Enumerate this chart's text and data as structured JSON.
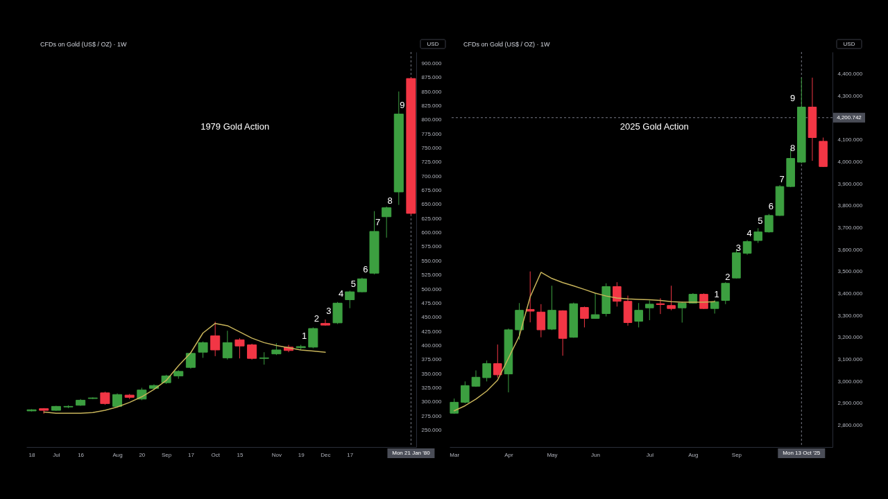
{
  "chart_data": [
    {
      "type": "candlestick",
      "title": "CFDs on Gold (US$ / OZ) · 1W",
      "ylabel": "USD",
      "x": [
        "1979-06-18",
        "1979-06-25",
        "1979-07-02",
        "1979-07-09",
        "1979-07-16",
        "1979-07-23",
        "1979-07-30",
        "1979-08-06",
        "1979-08-13",
        "1979-08-20",
        "1979-08-27",
        "1979-09-03",
        "1979-09-10",
        "1979-09-17",
        "1979-09-24",
        "1979-10-01",
        "1979-10-08",
        "1979-10-15",
        "1979-10-22",
        "1979-10-29",
        "1979-11-05",
        "1979-11-12",
        "1979-11-19",
        "1979-11-26",
        "1979-12-03",
        "1979-12-10",
        "1979-12-17",
        "1979-12-24",
        "1979-12-31",
        "1980-01-07",
        "1980-01-14",
        "1980-01-21"
      ],
      "ohlc": [
        [
          284,
          287,
          283,
          286
        ],
        [
          288,
          289,
          279,
          285
        ],
        [
          285,
          293,
          284,
          292
        ],
        [
          291,
          294,
          289,
          292
        ],
        [
          294,
          305,
          293,
          303
        ],
        [
          306,
          308,
          305,
          307
        ],
        [
          316,
          318,
          295,
          297
        ],
        [
          292,
          315,
          290,
          313
        ],
        [
          312,
          314,
          305,
          308
        ],
        [
          305,
          325,
          303,
          321
        ],
        [
          324,
          331,
          322,
          329
        ],
        [
          334,
          348,
          332,
          346
        ],
        [
          346,
          356,
          341,
          354
        ],
        [
          361,
          388,
          359,
          386
        ],
        [
          388,
          407,
          378,
          405
        ],
        [
          417,
          442,
          381,
          392
        ],
        [
          378,
          426,
          375,
          405
        ],
        [
          410,
          413,
          377,
          399
        ],
        [
          401,
          403,
          375,
          377
        ],
        [
          377,
          388,
          366,
          378
        ],
        [
          385,
          404,
          383,
          392
        ],
        [
          397,
          401,
          388,
          391
        ],
        [
          396,
          401,
          392,
          398
        ],
        [
          397,
          432,
          395,
          430
        ],
        [
          439,
          446,
          435,
          436
        ],
        [
          440,
          477,
          438,
          475
        ],
        [
          481,
          497,
          466,
          495
        ],
        [
          495,
          520,
          494,
          518
        ],
        [
          528,
          638,
          526,
          602
        ],
        [
          628,
          646,
          591,
          644
        ],
        [
          672,
          850,
          649,
          810
        ],
        [
          873,
          875,
          631,
          634
        ]
      ],
      "colors": [
        "#3c9f40",
        "#f23645",
        "#3c9f40",
        "#3c9f40",
        "#3c9f40",
        "#3c9f40",
        "#f23645",
        "#3c9f40",
        "#f23645",
        "#3c9f40",
        "#3c9f40",
        "#3c9f40",
        "#3c9f40",
        "#3c9f40",
        "#3c9f40",
        "#f23645",
        "#3c9f40",
        "#f23645",
        "#f23645",
        "#3c9f40",
        "#3c9f40",
        "#f23645",
        "#3c9f40",
        "#3c9f40",
        "#f23645",
        "#3c9f40",
        "#3c9f40",
        "#3c9f40",
        "#3c9f40",
        "#3c9f40",
        "#3c9f40",
        "#f23645"
      ],
      "xlim": [
        "1979-06-15",
        "1980-01-24"
      ],
      "xticks": [
        {
          "value": "1979-06-18",
          "label": "18"
        },
        {
          "value": "1979-07-02",
          "label": "Jul"
        },
        {
          "value": "1979-07-16",
          "label": "16"
        },
        {
          "value": "1979-08-06",
          "label": "Aug"
        },
        {
          "value": "1979-08-20",
          "label": "20"
        },
        {
          "value": "1979-09-03",
          "label": "Sep"
        },
        {
          "value": "1979-09-17",
          "label": "17"
        },
        {
          "value": "1979-10-01",
          "label": "Oct"
        },
        {
          "value": "1979-10-15",
          "label": "15"
        },
        {
          "value": "1979-11-05",
          "label": "Nov"
        },
        {
          "value": "1979-11-19",
          "label": "19"
        },
        {
          "value": "1979-12-03",
          "label": "Dec"
        },
        {
          "value": "1979-12-17",
          "label": "17"
        }
      ],
      "ylim": [
        220,
        920
      ],
      "yticks": [
        {
          "value": 250,
          "label": "250.000"
        },
        {
          "value": 275,
          "label": "275.000"
        },
        {
          "value": 300,
          "label": "300.000"
        },
        {
          "value": 325,
          "label": "325.000"
        },
        {
          "value": 350,
          "label": "350.000"
        },
        {
          "value": 375,
          "label": "375.000"
        },
        {
          "value": 400,
          "label": "400.000"
        },
        {
          "value": 425,
          "label": "425.000"
        },
        {
          "value": 450,
          "label": "450.000"
        },
        {
          "value": 475,
          "label": "475.000"
        },
        {
          "value": 500,
          "label": "500.000"
        },
        {
          "value": 525,
          "label": "525.000"
        },
        {
          "value": 550,
          "label": "550.000"
        },
        {
          "value": 575,
          "label": "575.000"
        },
        {
          "value": 600,
          "label": "600.000"
        },
        {
          "value": 625,
          "label": "625.000"
        },
        {
          "value": 650,
          "label": "650.000"
        },
        {
          "value": 675,
          "label": "675.000"
        },
        {
          "value": 700,
          "label": "700.000"
        },
        {
          "value": 725,
          "label": "725.000"
        },
        {
          "value": 750,
          "label": "750.000"
        },
        {
          "value": 775,
          "label": "775.000"
        },
        {
          "value": 800,
          "label": "800.000"
        },
        {
          "value": 825,
          "label": "825.000"
        },
        {
          "value": 850,
          "label": "850.000"
        },
        {
          "value": 875,
          "label": "875.000"
        },
        {
          "value": 900,
          "label": "900.000"
        }
      ],
      "series": [
        {
          "type": "line",
          "color": "#c8b45a",
          "x": [
            "1979-06-25",
            "1979-07-02",
            "1979-07-09",
            "1979-07-16",
            "1979-07-23",
            "1979-07-30",
            "1979-08-06",
            "1979-08-13",
            "1979-08-20",
            "1979-08-27",
            "1979-09-03",
            "1979-09-10",
            "1979-09-17",
            "1979-09-24",
            "1979-10-01",
            "1979-10-08",
            "1979-10-15",
            "1979-10-22",
            "1979-10-29",
            "1979-11-05",
            "1979-11-12",
            "1979-11-19",
            "1979-11-26",
            "1979-12-03"
          ],
          "values": [
            282,
            280,
            280,
            280,
            281,
            285,
            291,
            299,
            309,
            322,
            338,
            364,
            387,
            422,
            439,
            435,
            424,
            413,
            405,
            400,
            396,
            392,
            390,
            388
          ]
        }
      ],
      "annotations": [
        "1979 Gold Action",
        {
          "text": "1",
          "x": "1979-11-26",
          "y": 416
        },
        {
          "text": "2",
          "x": "1979-12-03",
          "y": 447
        },
        {
          "text": "3",
          "x": "1979-12-10",
          "y": 461
        },
        {
          "text": "4",
          "x": "1979-12-17",
          "y": 491
        },
        {
          "text": "5",
          "x": "1979-12-24",
          "y": 509
        },
        {
          "text": "6",
          "x": "1979-12-31",
          "y": 535
        },
        {
          "text": "7",
          "x": "1980-01-07",
          "y": 618
        },
        {
          "text": "8",
          "x": "1980-01-14",
          "y": 656
        },
        {
          "text": "9",
          "x": "1980-01-21",
          "y": 826
        }
      ],
      "ref_lines": [
        {
          "axis": "x",
          "value": "1980-01-21",
          "label": "Mon 21 Jan '80",
          "line_style": "dashed",
          "color": "#787b86"
        }
      ]
    },
    {
      "type": "candlestick",
      "title": "CFDs on Gold (US$ / OZ) · 1W",
      "ylabel": "USD",
      "x": [
        "2025-03-03",
        "2025-03-10",
        "2025-03-17",
        "2025-03-24",
        "2025-03-31",
        "2025-04-07",
        "2025-04-14",
        "2025-04-21",
        "2025-04-28",
        "2025-05-05",
        "2025-05-12",
        "2025-05-19",
        "2025-05-26",
        "2025-06-02",
        "2025-06-09",
        "2025-06-16",
        "2025-06-23",
        "2025-06-30",
        "2025-07-07",
        "2025-07-14",
        "2025-07-21",
        "2025-07-28",
        "2025-08-04",
        "2025-08-11",
        "2025-08-18",
        "2025-08-25",
        "2025-09-01",
        "2025-09-08",
        "2025-09-15",
        "2025-09-22",
        "2025-09-29",
        "2025-10-06",
        "2025-10-13",
        "2025-10-20",
        "2025-10-27"
      ],
      "ohlc": [
        [
          2854,
          2921,
          2851,
          2904
        ],
        [
          2904,
          2999,
          2899,
          2980
        ],
        [
          2977,
          3049,
          2974,
          3018
        ],
        [
          3016,
          3094,
          2999,
          3080
        ],
        [
          3080,
          3167,
          3016,
          3029
        ],
        [
          3033,
          3240,
          2949,
          3234
        ],
        [
          3234,
          3356,
          3189,
          3323
        ],
        [
          3327,
          3500,
          3268,
          3319
        ],
        [
          3315,
          3351,
          3200,
          3234
        ],
        [
          3237,
          3435,
          3233,
          3323
        ],
        [
          3321,
          3323,
          3116,
          3195
        ],
        [
          3200,
          3358,
          3198,
          3353
        ],
        [
          3336,
          3340,
          3245,
          3286
        ],
        [
          3286,
          3401,
          3284,
          3303
        ],
        [
          3308,
          3446,
          3295,
          3431
        ],
        [
          3431,
          3451,
          3340,
          3364
        ],
        [
          3364,
          3390,
          3253,
          3267
        ],
        [
          3273,
          3356,
          3245,
          3323
        ],
        [
          3334,
          3368,
          3278,
          3351
        ],
        [
          3353,
          3378,
          3306,
          3349
        ],
        [
          3345,
          3435,
          3323,
          3331
        ],
        [
          3334,
          3362,
          3267,
          3356
        ],
        [
          3356,
          3401,
          3354,
          3396
        ],
        [
          3396,
          3400,
          3329,
          3331
        ],
        [
          3331,
          3370,
          3308,
          3362
        ],
        [
          3368,
          3451,
          3351,
          3446
        ],
        [
          3470,
          3600,
          3468,
          3585
        ],
        [
          3583,
          3643,
          3576,
          3636
        ],
        [
          3641,
          3697,
          3630,
          3680
        ],
        [
          3680,
          3762,
          3677,
          3755
        ],
        [
          3755,
          3893,
          3753,
          3887
        ],
        [
          3887,
          4060,
          3884,
          4015
        ],
        [
          3998,
          4383,
          3993,
          4249
        ],
        [
          4249,
          4383,
          4004,
          4110
        ],
        [
          4093,
          4110,
          3976,
          3978
        ]
      ],
      "colors": [
        "#3c9f40",
        "#3c9f40",
        "#3c9f40",
        "#3c9f40",
        "#f23645",
        "#3c9f40",
        "#3c9f40",
        "#f23645",
        "#f23645",
        "#3c9f40",
        "#f23645",
        "#3c9f40",
        "#f23645",
        "#3c9f40",
        "#3c9f40",
        "#f23645",
        "#f23645",
        "#3c9f40",
        "#3c9f40",
        "#f23645",
        "#f23645",
        "#3c9f40",
        "#3c9f40",
        "#f23645",
        "#3c9f40",
        "#3c9f40",
        "#3c9f40",
        "#3c9f40",
        "#3c9f40",
        "#3c9f40",
        "#3c9f40",
        "#3c9f40",
        "#3c9f40",
        "#f23645",
        "#f23645"
      ],
      "xlim": [
        "2025-02-28",
        "2025-11-02"
      ],
      "xticks": [
        {
          "value": "2025-03-03",
          "label": "Mar"
        },
        {
          "value": "2025-04-07",
          "label": "Apr"
        },
        {
          "value": "2025-05-05",
          "label": "May"
        },
        {
          "value": "2025-06-02",
          "label": "Jun"
        },
        {
          "value": "2025-07-07",
          "label": "Jul"
        },
        {
          "value": "2025-08-04",
          "label": "Aug"
        },
        {
          "value": "2025-09-01",
          "label": "Sep"
        }
      ],
      "ylim": [
        2700,
        4500
      ],
      "yticks": [
        {
          "value": 2800,
          "label": "2,800.000"
        },
        {
          "value": 2900,
          "label": "2,900.000"
        },
        {
          "value": 3000,
          "label": "3,000.000"
        },
        {
          "value": 3100,
          "label": "3,100.000"
        },
        {
          "value": 3200,
          "label": "3,200.000"
        },
        {
          "value": 3300,
          "label": "3,300.000"
        },
        {
          "value": 3400,
          "label": "3,400.000"
        },
        {
          "value": 3500,
          "label": "3,500.000"
        },
        {
          "value": 3600,
          "label": "3,600.000"
        },
        {
          "value": 3700,
          "label": "3,700.000"
        },
        {
          "value": 3800,
          "label": "3,800.000"
        },
        {
          "value": 3900,
          "label": "3,900.000"
        },
        {
          "value": 4000,
          "label": "4,000.000"
        },
        {
          "value": 4100,
          "label": "4,100.000"
        },
        {
          "value": 4300,
          "label": "4,300.000"
        },
        {
          "value": 4400,
          "label": "4,400.000"
        }
      ],
      "series": [
        {
          "type": "line",
          "color": "#c8b45a",
          "x": [
            "2025-03-03",
            "2025-03-10",
            "2025-03-17",
            "2025-03-24",
            "2025-03-31",
            "2025-04-07",
            "2025-04-14",
            "2025-04-21",
            "2025-04-28",
            "2025-05-05",
            "2025-05-12",
            "2025-05-19",
            "2025-05-26",
            "2025-06-02",
            "2025-06-09",
            "2025-06-16",
            "2025-06-23",
            "2025-06-30",
            "2025-07-07",
            "2025-07-14",
            "2025-07-21",
            "2025-07-28",
            "2025-08-04",
            "2025-08-11",
            "2025-08-18"
          ],
          "values": [
            2865,
            2888,
            2918,
            2955,
            3005,
            3105,
            3206,
            3384,
            3496,
            3468,
            3449,
            3434,
            3418,
            3401,
            3388,
            3379,
            3375,
            3373,
            3371,
            3368,
            3362,
            3360,
            3360,
            3360,
            3362
          ]
        }
      ],
      "annotations": [
        "2025 Gold Action",
        {
          "text": "1",
          "x": "2025-08-25",
          "y": 3395
        },
        {
          "text": "2",
          "x": "2025-09-01",
          "y": 3473
        },
        {
          "text": "3",
          "x": "2025-09-08",
          "y": 3607
        },
        {
          "text": "4",
          "x": "2025-09-15",
          "y": 3674
        },
        {
          "text": "5",
          "x": "2025-09-22",
          "y": 3730
        },
        {
          "text": "6",
          "x": "2025-09-29",
          "y": 3797
        },
        {
          "text": "7",
          "x": "2025-10-06",
          "y": 3920
        },
        {
          "text": "8",
          "x": "2025-10-13",
          "y": 4060
        },
        {
          "text": "9",
          "x": "2025-10-13",
          "y": 4288
        }
      ],
      "ref_lines": [
        {
          "axis": "x",
          "value": "2025-10-13",
          "label": "Mon 13 Oct '25",
          "line_style": "dashed",
          "color": "#787b86"
        },
        {
          "axis": "y",
          "value": 4200.742,
          "label": "4,200.742",
          "line_style": "dashed",
          "color": "#787b86"
        }
      ]
    }
  ]
}
